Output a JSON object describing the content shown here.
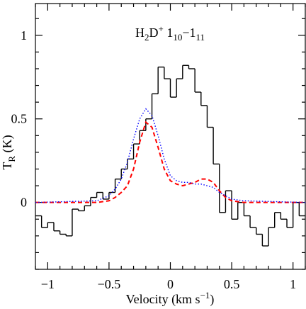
{
  "chart_data": {
    "type": "line",
    "title": [
      "H",
      "2",
      "D",
      "+",
      " 1",
      "10",
      "−1",
      "11"
    ],
    "xlabel": [
      "Velocity (km s",
      "−1",
      ")"
    ],
    "ylabel": [
      "T",
      "R",
      " (K)"
    ],
    "xlim": [
      -1.1,
      1.1
    ],
    "ylim": [
      -0.4,
      1.19
    ],
    "xticks": [
      {
        "value": -1,
        "label": "−1"
      },
      {
        "value": -0.5,
        "label": "−0.5"
      },
      0,
      0.5,
      1
    ],
    "yticks": [
      0,
      0.5,
      1
    ],
    "xminorticks": [
      -1.1,
      -0.9,
      -0.8,
      -0.7,
      -0.6,
      -0.4,
      -0.3,
      -0.2,
      -0.1,
      0.1,
      0.2,
      0.3,
      0.4,
      0.6,
      0.7,
      0.8,
      0.9,
      1.1
    ],
    "yminorticks": [
      -0.4,
      -0.3,
      -0.2,
      -0.1,
      0.1,
      0.2,
      0.3,
      0.4,
      0.6,
      0.7,
      0.8,
      0.9,
      1.1
    ],
    "series": [
      {
        "style": "steps",
        "color": "#000000",
        "x": [
          -1.075,
          -1.025,
          -0.975,
          -0.925,
          -0.875,
          -0.825,
          -0.775,
          -0.725,
          -0.675,
          -0.625,
          -0.575,
          -0.525,
          -0.475,
          -0.425,
          -0.375,
          -0.325,
          -0.275,
          -0.225,
          -0.175,
          -0.125,
          -0.075,
          -0.025,
          0.025,
          0.075,
          0.125,
          0.175,
          0.225,
          0.275,
          0.325,
          0.375,
          0.425,
          0.475,
          0.525,
          0.575,
          0.625,
          0.675,
          0.725,
          0.775,
          0.825,
          0.875,
          0.925,
          0.975,
          1.025,
          1.075
        ],
        "values": [
          -0.08,
          -0.15,
          -0.12,
          -0.17,
          -0.19,
          -0.2,
          -0.04,
          -0.05,
          -0.02,
          0.03,
          0.06,
          0.02,
          0.06,
          0.14,
          0.2,
          0.26,
          0.35,
          0.43,
          0.5,
          0.65,
          0.81,
          0.74,
          0.63,
          0.74,
          0.82,
          0.8,
          0.66,
          0.58,
          0.45,
          0.23,
          -0.06,
          0.07,
          -0.1,
          0.0,
          -0.08,
          -0.15,
          -0.19,
          -0.26,
          -0.15,
          -0.06,
          -0.1,
          -0.15,
          0.0,
          -0.08
        ]
      },
      {
        "style": "dashed",
        "color": "#ff0000",
        "x": [
          -1.1,
          -0.6,
          -0.5,
          -0.45,
          -0.4,
          -0.35,
          -0.3,
          -0.25,
          -0.2,
          -0.15,
          -0.1,
          -0.05,
          0,
          0.05,
          0.1,
          0.15,
          0.2,
          0.25,
          0.3,
          0.35,
          0.4,
          0.45,
          0.5,
          0.6,
          1.1
        ],
        "values": [
          0,
          0,
          0.01,
          0.03,
          0.06,
          0.1,
          0.2,
          0.36,
          0.48,
          0.45,
          0.33,
          0.2,
          0.13,
          0.11,
          0.1,
          0.11,
          0.12,
          0.14,
          0.14,
          0.12,
          0.07,
          0.03,
          0.01,
          0,
          0
        ]
      },
      {
        "style": "dotted",
        "color": "#0000ff",
        "x": [
          -1.1,
          -0.6,
          -0.5,
          -0.45,
          -0.4,
          -0.35,
          -0.3,
          -0.25,
          -0.2,
          -0.15,
          -0.1,
          -0.05,
          0,
          0.05,
          0.1,
          0.15,
          0.2,
          0.25,
          0.3,
          0.35,
          0.4,
          0.45,
          0.5,
          0.6,
          1.1
        ],
        "values": [
          0,
          0.01,
          0.04,
          0.08,
          0.14,
          0.24,
          0.38,
          0.5,
          0.56,
          0.52,
          0.4,
          0.26,
          0.16,
          0.13,
          0.12,
          0.12,
          0.11,
          0.11,
          0.1,
          0.09,
          0.06,
          0.04,
          0.02,
          0.01,
          0
        ]
      }
    ]
  }
}
